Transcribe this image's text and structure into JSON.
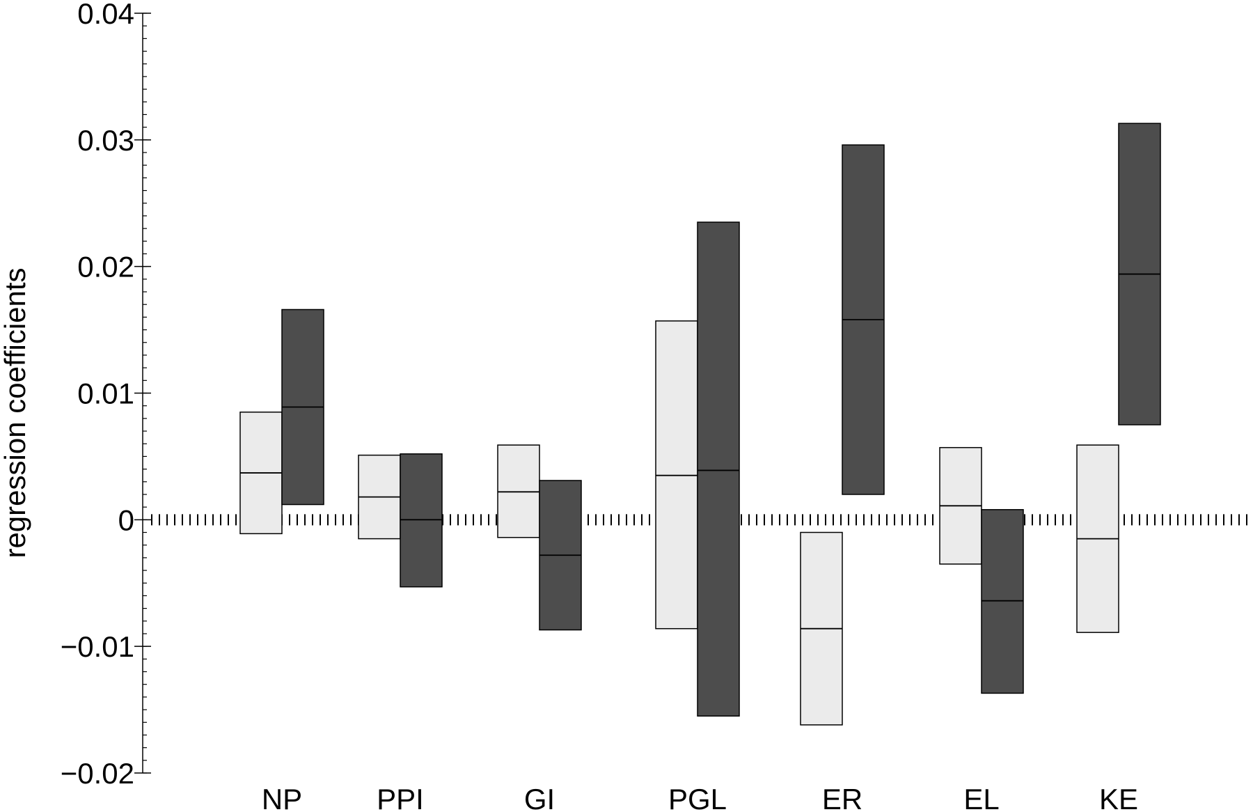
{
  "chart_data": {
    "type": "bar",
    "subtype": "floating-interval-boxes",
    "title": "",
    "xlabel": "",
    "ylabel": "regression coefficients",
    "ylim": [
      -0.02,
      0.04
    ],
    "yticks": [
      -0.02,
      -0.01,
      0,
      0.01,
      0.02,
      0.03,
      0.04
    ],
    "ytick_labels": [
      "−0.02",
      "−0.01",
      "0",
      "0.01",
      "0.02",
      "0.03",
      "0.04"
    ],
    "categories": [
      "NP",
      "PPI",
      "GI",
      "PGL",
      "ER",
      "EL",
      "KE"
    ],
    "reference_line": {
      "y": 0,
      "style": "dotted"
    },
    "grid": false,
    "legend": "none",
    "series": [
      {
        "color": "#ebebeb",
        "median_line_color": "#000000",
        "low": [
          -0.0011,
          -0.0015,
          -0.0014,
          -0.0086,
          -0.0162,
          -0.0035,
          -0.0089
        ],
        "median": [
          0.0037,
          0.0018,
          0.0022,
          0.0035,
          -0.0086,
          0.0011,
          -0.0015
        ],
        "high": [
          0.0085,
          0.0051,
          0.0059,
          0.0157,
          -0.001,
          0.0057,
          0.0059
        ]
      },
      {
        "color": "#4d4d4d",
        "median_line_color": "#000000",
        "low": [
          0.0012,
          -0.0053,
          -0.0087,
          -0.0155,
          0.002,
          -0.0137,
          0.0075
        ],
        "median": [
          0.0089,
          0.0,
          -0.0028,
          0.0039,
          0.0158,
          -0.0064,
          0.0194
        ],
        "high": [
          0.0166,
          0.0052,
          0.0031,
          0.0235,
          0.0296,
          0.0008,
          0.0313
        ]
      }
    ]
  }
}
